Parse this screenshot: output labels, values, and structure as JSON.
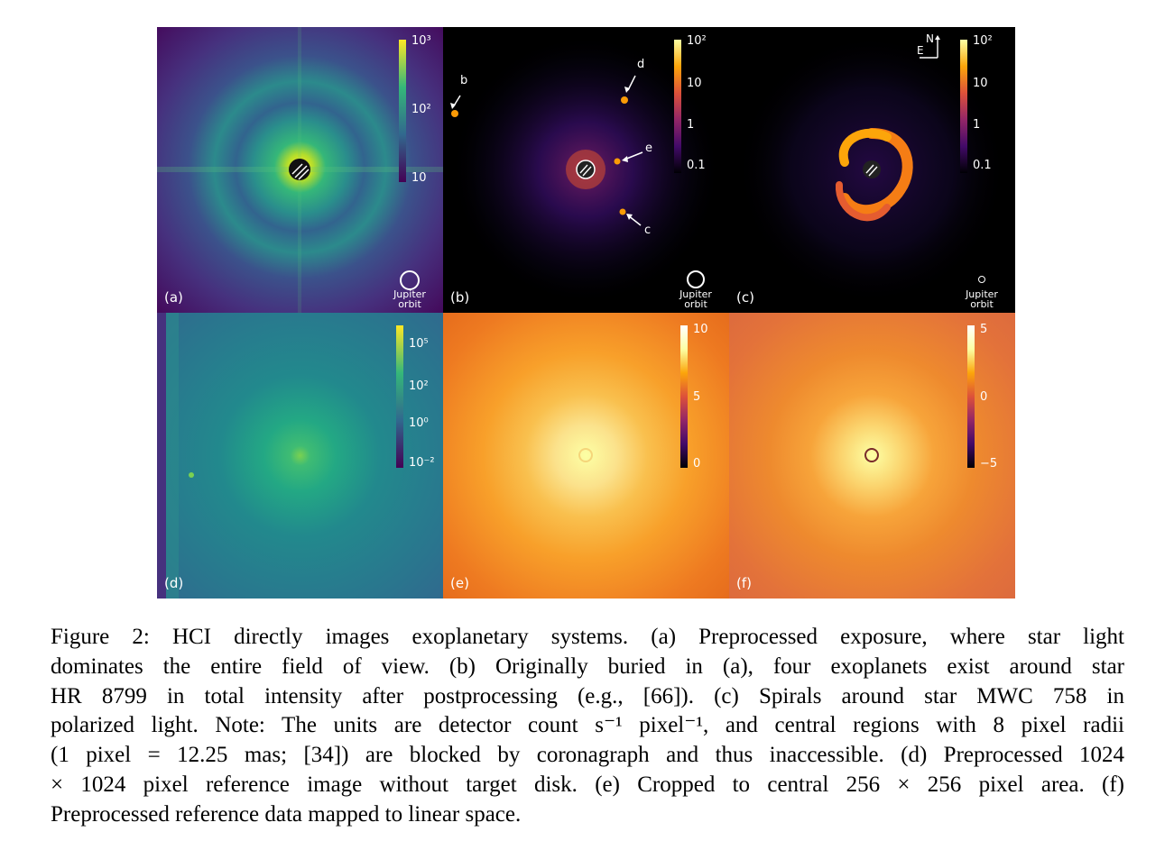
{
  "figure": {
    "panels": [
      {
        "id": "a",
        "label": "(a)",
        "colorbar_ticks": [
          "10³",
          "10²",
          "10"
        ],
        "orbit_label": [
          "Jupiter",
          "orbit"
        ]
      },
      {
        "id": "b",
        "label": "(b)",
        "colorbar_ticks": [
          "10²",
          "10",
          "1",
          "0.1"
        ],
        "orbit_label": [
          "Jupiter",
          "orbit"
        ],
        "planets": [
          "b",
          "d",
          "e",
          "c"
        ]
      },
      {
        "id": "c",
        "label": "(c)",
        "colorbar_ticks": [
          "10²",
          "10",
          "1",
          "0.1"
        ],
        "orbit_label": [
          "Jupiter",
          "orbit"
        ],
        "compass": {
          "north": "N",
          "east": "E"
        }
      },
      {
        "id": "d",
        "label": "(d)",
        "colorbar_ticks": [
          "10⁵",
          "10²",
          "10⁰",
          "10⁻²"
        ]
      },
      {
        "id": "e",
        "label": "(e)",
        "colorbar_ticks": [
          "10",
          "5",
          "0"
        ]
      },
      {
        "id": "f",
        "label": "(f)",
        "colorbar_ticks": [
          "5",
          "0",
          "−5"
        ]
      }
    ]
  },
  "caption": {
    "lines": [
      "Figure 2: HCI directly images exoplanetary systems. (a) Preprocessed exposure, where star light",
      "dominates the entire field of view. (b) Originally buried in (a), four exoplanets exist around star",
      "HR 8799 in total intensity after postprocessing (e.g., [66]). (c) Spirals around star MWC 758 in",
      "polarized light. Note: The units are detector count s⁻¹ pixel⁻¹, and central regions with 8 pixel radii",
      "(1 pixel = 12.25 mas; [34]) are blocked by coronagraph and thus inaccessible. (d) Preprocessed 1024",
      "× 1024 pixel reference image without target disk. (e) Cropped to central 256 × 256 pixel area. (f)",
      "Preprocessed reference data mapped to linear space."
    ]
  }
}
